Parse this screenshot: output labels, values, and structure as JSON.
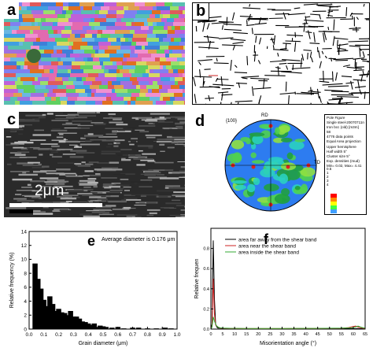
{
  "figure": {
    "panels": {
      "a": {
        "tag": "a"
      },
      "b": {
        "tag": "b"
      },
      "c": {
        "tag": "c",
        "scale_bar_label": "2μm"
      },
      "d": {
        "tag": "d",
        "plane_label": "{100}",
        "rd_label": "RD",
        "td_label": "TD",
        "info_lines": [
          "Pole Figure",
          "Single steel-20070711n",
          "Iron bcc (old) [m3m]",
          "58",
          "4776 data points",
          "Equal Area projection",
          "Upper hemisphere",
          "Half width 5°",
          "Cluster size 5°",
          "Exp. densities (mud)",
          "Min= 0.02, Max= 4.41"
        ],
        "legend_values": [
          "0.5",
          "1",
          "2",
          "3",
          "4"
        ]
      },
      "e": {
        "tag": "e",
        "annotation": "Average diameter is 0.176 μm"
      },
      "f": {
        "tag": "f"
      }
    },
    "colors": {
      "black": "#000000",
      "red_series": "#cc2222",
      "green_series": "#33aa33",
      "ebsd_bg": "#6f6fc8"
    }
  },
  "chart_data": [
    {
      "panel": "e",
      "type": "bar",
      "xlabel": "Grain diameter (μm)",
      "ylabel": "Relative frequency (%)",
      "xlim": [
        0,
        1.0
      ],
      "ylim": [
        0,
        14
      ],
      "xticks": [
        "0.0",
        "0.1",
        "0.2",
        "0.3",
        "0.4",
        "0.5",
        "0.6",
        "0.7",
        "0.8",
        "0.9",
        "1.0"
      ],
      "yticks": [
        "0",
        "2",
        "4",
        "6",
        "8",
        "10",
        "12",
        "14"
      ],
      "x": [
        0.04,
        0.06,
        0.08,
        0.1,
        0.12,
        0.14,
        0.16,
        0.18,
        0.2,
        0.22,
        0.24,
        0.26,
        0.28,
        0.3,
        0.32,
        0.34,
        0.36,
        0.38,
        0.4,
        0.42,
        0.44,
        0.46,
        0.48,
        0.5,
        0.52,
        0.56,
        0.6,
        0.64,
        0.7,
        0.74,
        0.8,
        0.86,
        0.92,
        0.96
      ],
      "values": [
        9.4,
        7.2,
        5.8,
        4.2,
        3.3,
        4.7,
        3.6,
        2.6,
        2.9,
        2.4,
        2.3,
        2.0,
        2.6,
        1.8,
        1.8,
        1.5,
        1.1,
        1.0,
        0.8,
        0.6,
        0.8,
        0.3,
        0.5,
        0.4,
        0.3,
        0.2,
        0.3,
        0.1,
        0.2,
        0.2,
        0.1,
        0.1,
        0.2,
        0.1
      ]
    },
    {
      "panel": "f",
      "type": "line",
      "xlabel": "Misorientation angle (°)",
      "ylabel": "Relative frequen",
      "xlim": [
        0,
        65
      ],
      "ylim": [
        0,
        1.0
      ],
      "xticks": [
        "0",
        "5",
        "10",
        "15",
        "20",
        "25",
        "30",
        "35",
        "40",
        "45",
        "50",
        "55",
        "60",
        "65"
      ],
      "yticks": [
        "0.0",
        "0.2",
        "0.4",
        "0.6",
        "0.8"
      ],
      "series": [
        {
          "name": "area far away from the shear band",
          "x": [
            0,
            0.5,
            1,
            1.5,
            2,
            2.5,
            3,
            3.5,
            4,
            5,
            8,
            15,
            30,
            45,
            55,
            58,
            60,
            61,
            62,
            63,
            65
          ],
          "values": [
            0,
            0.05,
            0.88,
            0.3,
            0.05,
            0.02,
            0.01,
            0.01,
            0.01,
            0.005,
            0.003,
            0.002,
            0.002,
            0.002,
            0.003,
            0.005,
            0.004,
            0.004,
            0.005,
            0.004,
            0.002
          ]
        },
        {
          "name": "area near the shear band",
          "x": [
            0,
            0.5,
            1,
            1.5,
            2,
            2.5,
            3,
            3.5,
            4,
            5,
            8,
            15,
            30,
            45,
            55,
            58,
            60,
            61,
            62,
            63,
            65
          ],
          "values": [
            0,
            0.03,
            0.5,
            0.15,
            0.04,
            0.03,
            0.02,
            0.015,
            0.01,
            0.008,
            0.006,
            0.005,
            0.005,
            0.006,
            0.008,
            0.015,
            0.025,
            0.03,
            0.02,
            0.015,
            0.005
          ]
        },
        {
          "name": "area inside the shear band",
          "x": [
            0,
            0.5,
            1,
            1.5,
            2,
            2.5,
            3,
            3.5,
            4,
            5,
            8,
            15,
            30,
            45,
            55,
            58,
            60,
            61,
            62,
            63,
            65
          ],
          "values": [
            0,
            0.02,
            0.12,
            0.08,
            0.05,
            0.03,
            0.02,
            0.015,
            0.012,
            0.01,
            0.008,
            0.006,
            0.006,
            0.007,
            0.009,
            0.012,
            0.015,
            0.02,
            0.03,
            0.02,
            0.008
          ]
        }
      ]
    }
  ]
}
